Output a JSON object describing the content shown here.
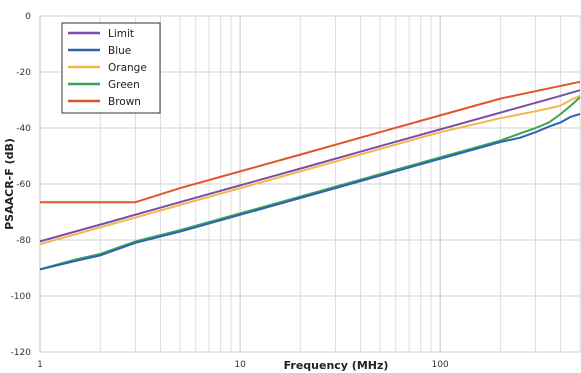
{
  "chart_data": {
    "type": "line",
    "title": "",
    "xlabel": "Frequency (MHz)",
    "ylabel": "PSAACR-F (dB)",
    "xscale": "log",
    "xlim": [
      1,
      500
    ],
    "ylim": [
      -120,
      0
    ],
    "xticks": [
      {
        "value": 1,
        "label": "1"
      },
      {
        "value": 10,
        "label": "10"
      },
      {
        "value": 100,
        "label": "100"
      }
    ],
    "yticks": [
      {
        "value": 0,
        "label": "0"
      },
      {
        "value": -20,
        "label": "-20"
      },
      {
        "value": -40,
        "label": "-40"
      },
      {
        "value": -60,
        "label": "-60"
      },
      {
        "value": -80,
        "label": "-80"
      },
      {
        "value": -100,
        "label": "-100"
      },
      {
        "value": -120,
        "label": "-120"
      }
    ],
    "grid": true,
    "legend_position": "top-left",
    "series": [
      {
        "name": "Limit",
        "color": "#7a4fa8",
        "x": [
          1,
          2,
          5,
          10,
          20,
          50,
          100,
          200,
          300,
          400,
          500
        ],
        "y": [
          -80.5,
          -74.5,
          -66.5,
          -60.5,
          -54.5,
          -46.5,
          -40.5,
          -34.5,
          -31,
          -28.5,
          -26.5
        ]
      },
      {
        "name": "Blue",
        "color": "#2f63b0",
        "x": [
          1,
          1.5,
          2,
          3,
          5,
          10,
          20,
          50,
          100,
          150,
          200,
          250,
          300,
          350,
          400,
          450,
          500
        ],
        "y": [
          -90.5,
          -87.5,
          -85.5,
          -81,
          -77,
          -71,
          -65,
          -57,
          -51,
          -47.5,
          -45,
          -43.5,
          -41.5,
          -39.5,
          -38,
          -36,
          -35
        ]
      },
      {
        "name": "Orange",
        "color": "#f2b84b",
        "x": [
          1,
          2,
          5,
          10,
          20,
          50,
          100,
          200,
          300,
          350,
          400,
          450,
          500
        ],
        "y": [
          -81.5,
          -75.5,
          -67.5,
          -61.5,
          -55.5,
          -47.5,
          -41.5,
          -36.5,
          -34,
          -33,
          -32,
          -30,
          -28.5
        ]
      },
      {
        "name": "Green",
        "color": "#3aa652",
        "x": [
          1,
          1.5,
          2,
          3,
          5,
          10,
          20,
          50,
          100,
          150,
          200,
          250,
          300,
          350,
          400,
          450,
          500
        ],
        "y": [
          -90.5,
          -87,
          -85,
          -80.5,
          -76.5,
          -70.5,
          -64.5,
          -56.5,
          -50.5,
          -47,
          -44.5,
          -42,
          -40,
          -38,
          -35,
          -32,
          -29
        ]
      },
      {
        "name": "Brown",
        "color": "#e0552b",
        "x": [
          1,
          3,
          5,
          10,
          20,
          50,
          100,
          200,
          500
        ],
        "y": [
          -66.5,
          -66.5,
          -61.5,
          -55.5,
          -49.5,
          -41.5,
          -35.5,
          -29.5,
          -23.5
        ]
      }
    ]
  }
}
